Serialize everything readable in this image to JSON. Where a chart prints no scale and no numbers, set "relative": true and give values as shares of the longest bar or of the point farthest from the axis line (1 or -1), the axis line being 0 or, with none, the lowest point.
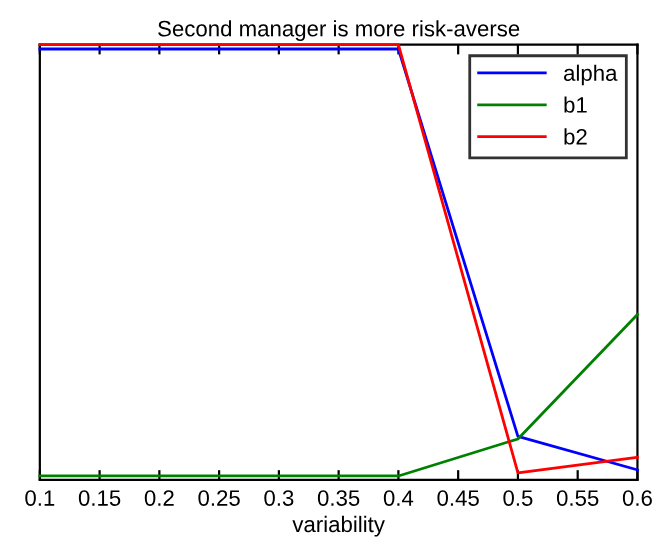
{
  "chart_data": {
    "type": "line",
    "title": "Second manager is more risk-averse",
    "xlabel": "variability",
    "relative": true,
    "x": [
      0.1,
      0.2,
      0.3,
      0.4,
      0.5,
      0.6
    ],
    "xlim": [
      0.1,
      0.6
    ],
    "xticks": [
      0.1,
      0.15,
      0.2,
      0.25,
      0.3,
      0.35,
      0.4,
      0.45,
      0.5,
      0.55,
      0.6
    ],
    "series": [
      {
        "name": "alpha",
        "color": "#0000ff",
        "values": [
          0.99,
          0.99,
          0.99,
          0.99,
          0.1,
          0.023
        ]
      },
      {
        "name": "b1",
        "color": "#008000",
        "values": [
          0.009,
          0.009,
          0.009,
          0.009,
          0.094,
          0.38
        ]
      },
      {
        "name": "b2",
        "color": "#ff0000",
        "values": [
          1.0,
          1.0,
          1.0,
          1.0,
          0.016,
          0.052
        ]
      }
    ],
    "legend": "top right",
    "grid": false
  }
}
